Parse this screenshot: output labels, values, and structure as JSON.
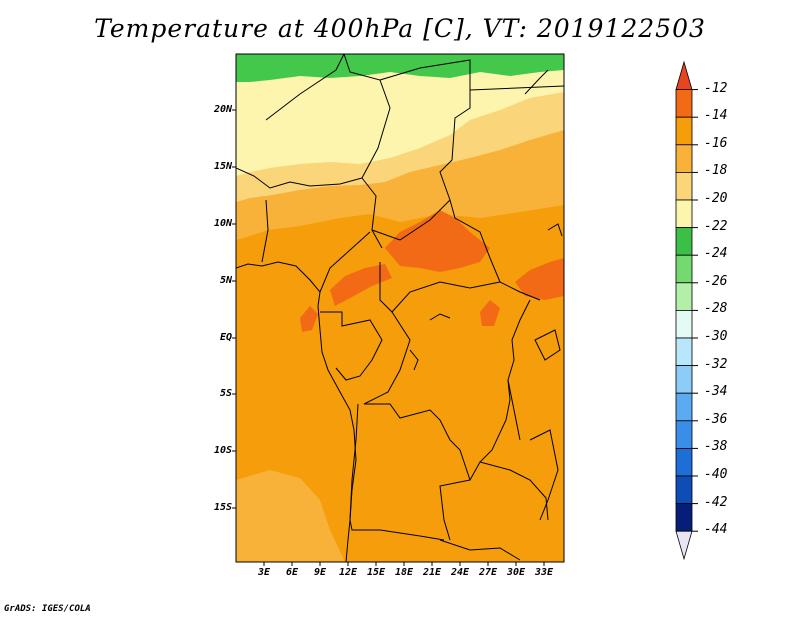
{
  "title": "Temperature at 400hPa [C], VT: 2019122503",
  "credit": "GrADS: IGES/COLA",
  "map": {
    "lat_labels": [
      "20N",
      "15N",
      "10N",
      "5N",
      "EQ",
      "5S",
      "10S",
      "15S"
    ],
    "lon_labels": [
      "3E",
      "6E",
      "9E",
      "12E",
      "15E",
      "18E",
      "21E",
      "24E",
      "27E",
      "30E",
      "33E"
    ],
    "region": "Central Africa",
    "colors": {
      "lt_minus14": "#f26a16",
      "from_minus16_to_minus14": "#f59d0a",
      "from_minus18_to_minus16": "#f8b23a",
      "from_minus20_to_minus18": "#fbd579",
      "from_minus22_to_minus20": "#fdf5ae",
      "from_minus24_to_minus22": "#44c84b"
    }
  },
  "colorbar": {
    "labels": [
      "-12",
      "-14",
      "-16",
      "-18",
      "-20",
      "-22",
      "-24",
      "-26",
      "-28",
      "-30",
      "-32",
      "-34",
      "-36",
      "-38",
      "-40",
      "-42",
      "-44"
    ],
    "colors": [
      "#e8441f",
      "#f26a16",
      "#f59d0a",
      "#f8b23a",
      "#fbd579",
      "#fdf5ae",
      "#3cbf48",
      "#74d96e",
      "#b4efaa",
      "#e4fbf5",
      "#b8e6fb",
      "#8ccdf7",
      "#5cabf0",
      "#3a8ee8",
      "#1e6ed8",
      "#0e4cb6",
      "#061e78",
      "#e6e6f5"
    ]
  }
}
